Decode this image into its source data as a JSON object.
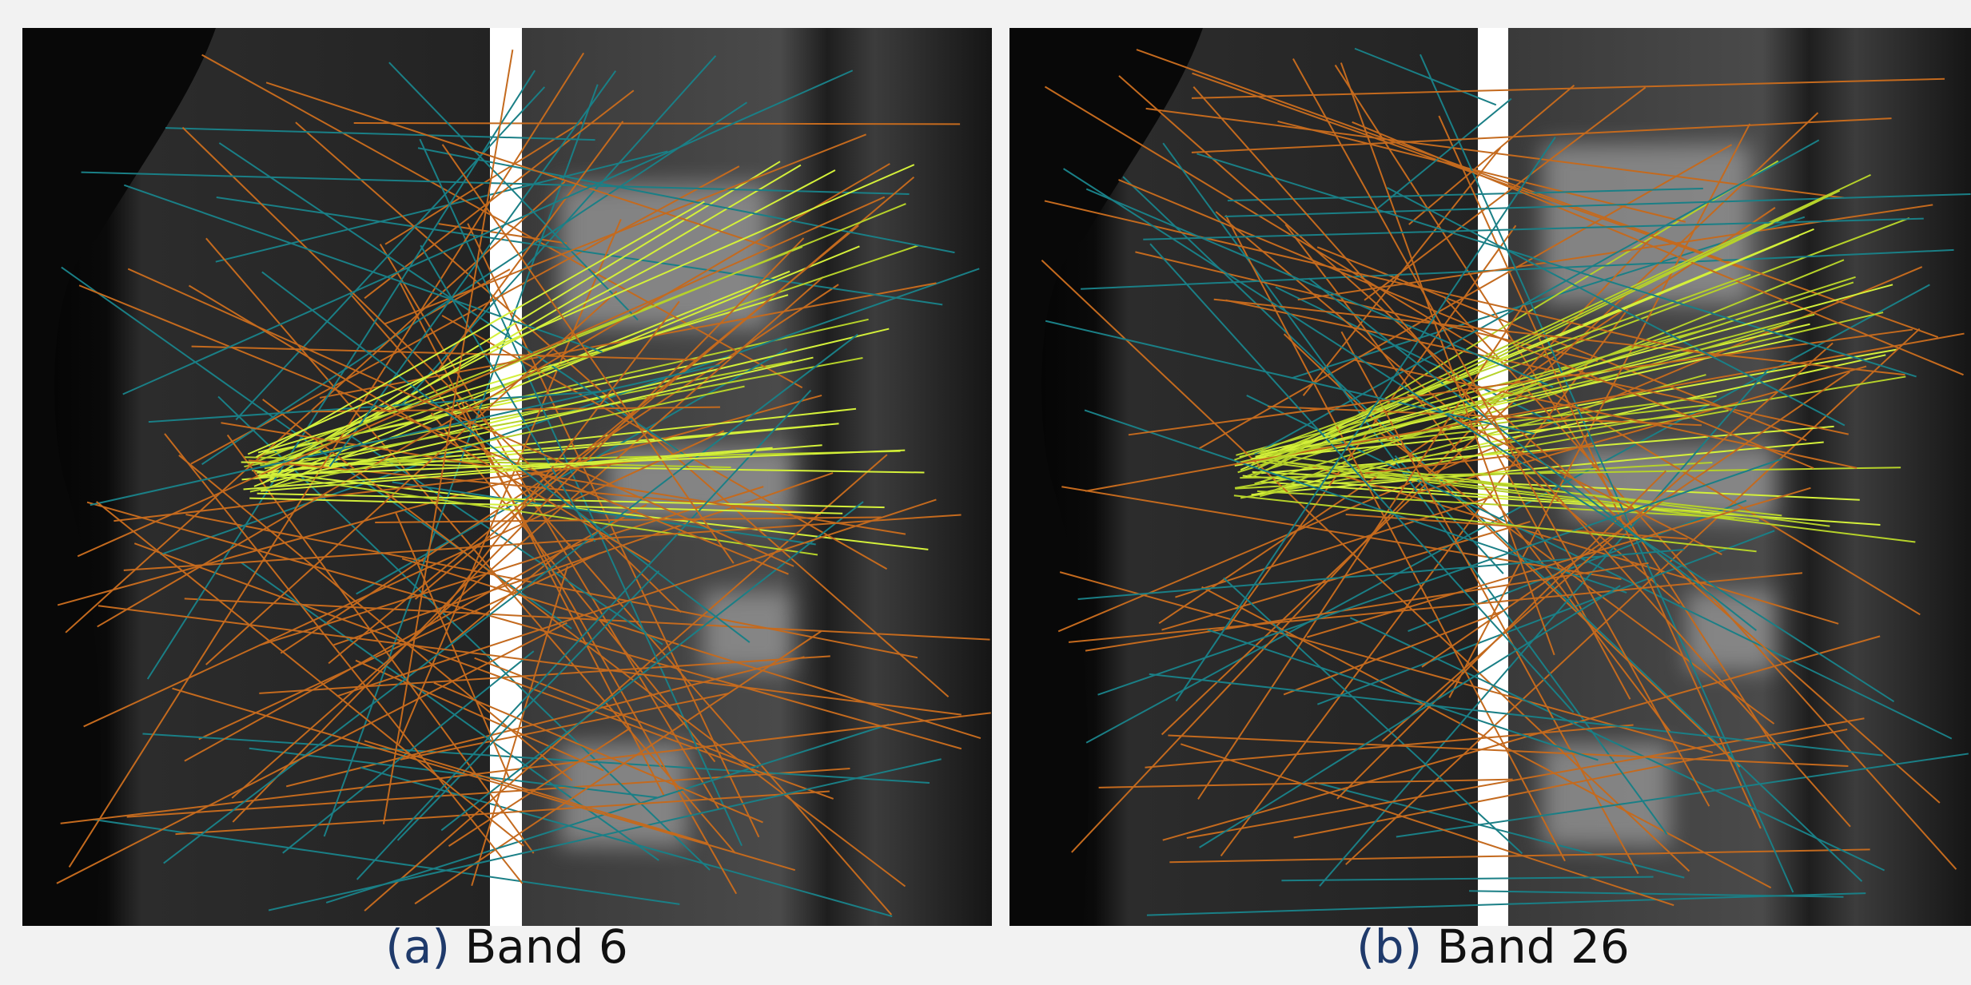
{
  "panels": [
    {
      "label": "(a)",
      "caption": "Band 6"
    },
    {
      "label": "(b)",
      "caption": "Band 26"
    }
  ]
}
